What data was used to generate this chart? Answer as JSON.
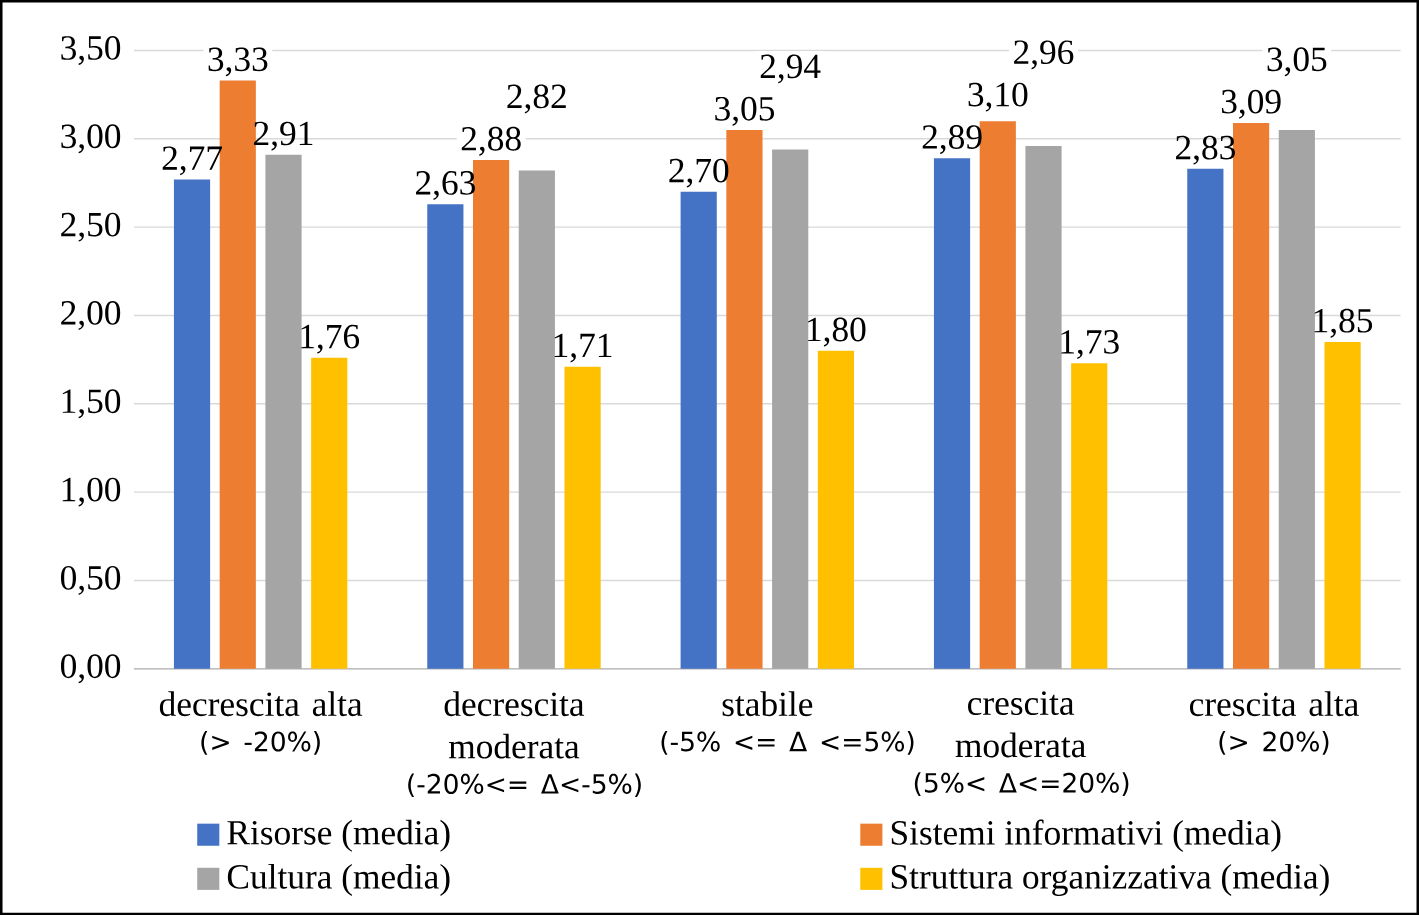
{
  "chart_data": {
    "type": "bar",
    "categories": [
      "decrescita alta",
      "decrescita moderata",
      "stabile",
      "crescita moderata",
      "crescita alta"
    ],
    "annotations": [
      "(> -20%)",
      "(-20%<= Δ<-5%)",
      "(-5% <= Δ <=5%)",
      "(5%< Δ<=20%)",
      "(> 20%)"
    ],
    "series": [
      {
        "name": "Risorse (media)",
        "color": "#4472c4",
        "values": [
          2.77,
          2.63,
          2.7,
          2.89,
          2.83
        ],
        "value_labels": [
          "2,77",
          "2,63",
          "2,70",
          "2,89",
          "2,83"
        ]
      },
      {
        "name": "Sistemi informativi (media)",
        "color": "#ed7d31",
        "values": [
          3.33,
          2.88,
          3.05,
          3.1,
          3.09
        ],
        "value_labels": [
          "3,33",
          "2,88",
          "3,05",
          "3,10",
          "3,09"
        ]
      },
      {
        "name": "Cultura (media)",
        "color": "#a5a5a5",
        "values": [
          2.91,
          2.82,
          2.94,
          2.96,
          3.05
        ],
        "value_labels": [
          "2,91",
          "2,82",
          "2,94",
          "2,96",
          "3,05"
        ]
      },
      {
        "name": "Struttura organizzativa (media)",
        "color": "#ffc000",
        "values": [
          1.76,
          1.71,
          1.8,
          1.73,
          1.85
        ],
        "value_labels": [
          "1,76",
          "1,71",
          "1,80",
          "1,73",
          "1,85"
        ]
      }
    ],
    "ylim": [
      0,
      3.5
    ],
    "yticks": [
      {
        "value": 0,
        "label": "0,00"
      },
      {
        "value": 0.5,
        "label": "0,50"
      },
      {
        "value": 1,
        "label": "1,00"
      },
      {
        "value": 1.5,
        "label": "1,50"
      },
      {
        "value": 2,
        "label": "2,00"
      },
      {
        "value": 2.5,
        "label": "2,50"
      },
      {
        "value": 3,
        "label": "3,00"
      },
      {
        "value": 3.5,
        "label": "3,50"
      }
    ],
    "grid": "y",
    "legend": "bottom"
  }
}
